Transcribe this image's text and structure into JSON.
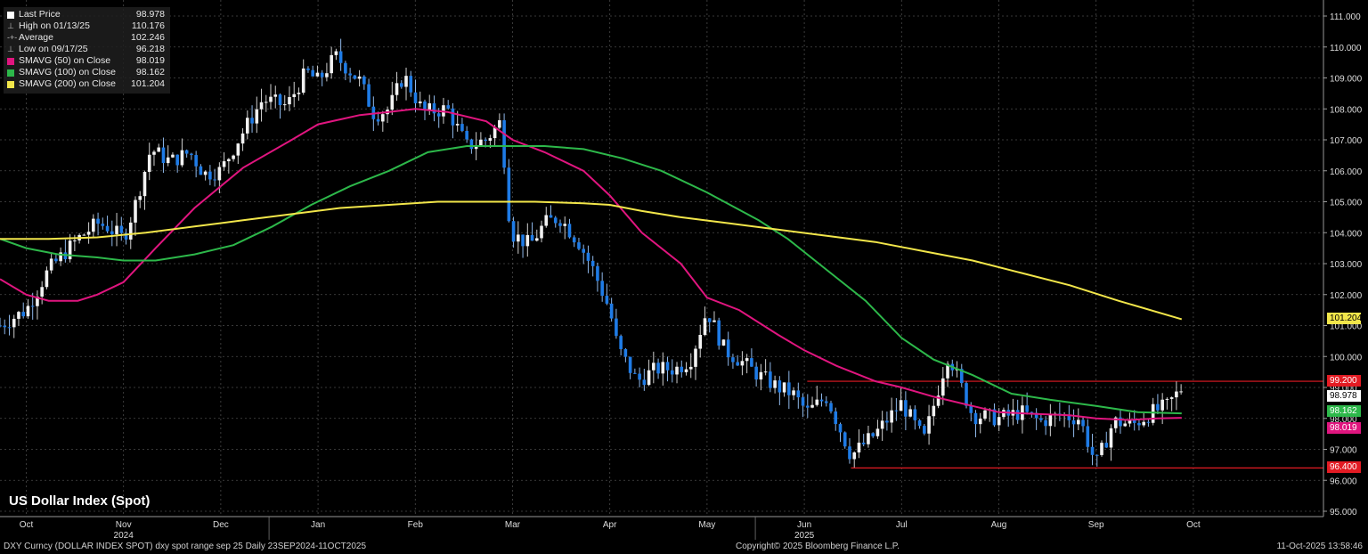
{
  "legend": [
    {
      "label": "Last Price",
      "value": "98.978",
      "color": "#ffffff",
      "kind": "box"
    },
    {
      "label": "High on 01/13/25",
      "value": "110.176",
      "kind": "tick"
    },
    {
      "label": "Average",
      "value": "102.246",
      "kind": "dash"
    },
    {
      "label": "Low on 09/17/25",
      "value": "96.218",
      "kind": "tick"
    },
    {
      "label": "SMAVG (50)  on Close",
      "value": "98.019",
      "color": "#e0157f",
      "kind": "box"
    },
    {
      "label": "SMAVG (100)  on Close",
      "value": "98.162",
      "color": "#2db84a",
      "kind": "box"
    },
    {
      "label": "SMAVG (200)  on Close",
      "value": "101.204",
      "color": "#f2e64a",
      "kind": "box"
    }
  ],
  "title": "US Dollar Index (Spot)",
  "footer": {
    "left": "DXY Curncy (DOLLAR INDEX SPOT) dxy spot range sep 25 Daily 23SEP2024-11OCT2025",
    "center": "Copyright© 2025 Bloomberg Finance L.P.",
    "right": "11-Oct-2025 13:58:46"
  },
  "tags": {
    "sma200": {
      "text": "101.204",
      "value": 101.204,
      "bg": "#f2e64a",
      "fg": "#000000"
    },
    "resistance": {
      "text": "99.200",
      "value": 99.2,
      "bg": "#e31b23",
      "fg": "#ffffff"
    },
    "last": {
      "text": "98.978",
      "value": 98.978,
      "bg": "#ffffff",
      "fg": "#000000"
    },
    "sma100": {
      "text": "98.162",
      "value": 98.162,
      "bg": "#2db84a",
      "fg": "#ffffff"
    },
    "sma50": {
      "text": "98.019",
      "value": 98.019,
      "bg": "#e0157f",
      "fg": "#ffffff"
    },
    "support": {
      "text": "96.400",
      "value": 96.4,
      "bg": "#e31b23",
      "fg": "#ffffff"
    }
  },
  "colors": {
    "up": "#f2f2f2",
    "down": "#1e7be6",
    "grid": "#4a4a4a",
    "hline": "#e31b23"
  },
  "chart_data": {
    "type": "line",
    "title": "US Dollar Index (Spot)",
    "ylim": [
      95.0,
      111.0
    ],
    "yticks": [
      "95.000",
      "96.000",
      "97.000",
      "98.000",
      "99.000",
      "100.000",
      "101.000",
      "102.000",
      "103.000",
      "104.000",
      "105.000",
      "106.000",
      "107.000",
      "108.000",
      "109.000",
      "110.000",
      "111.000"
    ],
    "x_ticks": [
      {
        "label": "Oct",
        "month": 0.27
      },
      {
        "label": "Nov",
        "month": 1.27
      },
      {
        "label": "Dec",
        "month": 2.27
      },
      {
        "label": "Jan",
        "month": 3.27
      },
      {
        "label": "Feb",
        "month": 4.27
      },
      {
        "label": "Mar",
        "month": 5.27
      },
      {
        "label": "Apr",
        "month": 6.27
      },
      {
        "label": "May",
        "month": 7.27
      },
      {
        "label": "Jun",
        "month": 8.27
      },
      {
        "label": "Jul",
        "month": 9.27
      },
      {
        "label": "Aug",
        "month": 10.27
      },
      {
        "label": "Sep",
        "month": 11.27
      },
      {
        "label": "Oct",
        "month": 12.27
      }
    ],
    "year_labels": [
      {
        "label": "2024",
        "month": 1.27
      },
      {
        "label": "2025",
        "month": 8.27
      }
    ],
    "price_path": [
      [
        0.0,
        101.0
      ],
      [
        0.27,
        101.5
      ],
      [
        0.5,
        102.8
      ],
      [
        0.8,
        103.8
      ],
      [
        1.0,
        104.3
      ],
      [
        1.1,
        104.2
      ],
      [
        1.27,
        103.8
      ],
      [
        1.4,
        105.0
      ],
      [
        1.55,
        106.7
      ],
      [
        1.75,
        106.3
      ],
      [
        1.95,
        106.6
      ],
      [
        2.1,
        105.9
      ],
      [
        2.27,
        106.0
      ],
      [
        2.45,
        107.0
      ],
      [
        2.7,
        108.3
      ],
      [
        2.95,
        108.1
      ],
      [
        3.15,
        109.2
      ],
      [
        3.27,
        108.9
      ],
      [
        3.45,
        109.7
      ],
      [
        3.7,
        108.9
      ],
      [
        3.85,
        107.8
      ],
      [
        4.0,
        108.0
      ],
      [
        4.15,
        109.1
      ],
      [
        4.35,
        107.9
      ],
      [
        4.6,
        108.0
      ],
      [
        4.8,
        106.8
      ],
      [
        5.0,
        107.0
      ],
      [
        5.15,
        107.6
      ],
      [
        5.25,
        104.0
      ],
      [
        5.45,
        103.6
      ],
      [
        5.6,
        104.3
      ],
      [
        5.75,
        104.5
      ],
      [
        5.95,
        103.7
      ],
      [
        6.1,
        102.8
      ],
      [
        6.27,
        101.5
      ],
      [
        6.35,
        100.3
      ],
      [
        6.55,
        99.2
      ],
      [
        6.75,
        99.6
      ],
      [
        6.95,
        99.6
      ],
      [
        7.1,
        99.9
      ],
      [
        7.27,
        101.5
      ],
      [
        7.45,
        100.2
      ],
      [
        7.6,
        99.9
      ],
      [
        7.8,
        99.4
      ],
      [
        8.0,
        99.0
      ],
      [
        8.15,
        98.8
      ],
      [
        8.3,
        98.2
      ],
      [
        8.5,
        98.7
      ],
      [
        8.75,
        96.8
      ],
      [
        9.0,
        97.5
      ],
      [
        9.27,
        98.5
      ],
      [
        9.5,
        97.3
      ],
      [
        9.75,
        100.1
      ],
      [
        10.0,
        98.1
      ],
      [
        10.27,
        98.0
      ],
      [
        10.5,
        98.2
      ],
      [
        10.7,
        97.9
      ],
      [
        10.9,
        98.1
      ],
      [
        11.1,
        98.0
      ],
      [
        11.27,
        96.5
      ],
      [
        11.45,
        97.9
      ],
      [
        11.65,
        97.8
      ],
      [
        11.85,
        98.2
      ],
      [
        12.0,
        98.4
      ],
      [
        12.15,
        98.978
      ]
    ],
    "series": [
      {
        "name": "SMAVG (50)  on Close",
        "color": "#e0157f",
        "points": [
          [
            0.0,
            102.5
          ],
          [
            0.27,
            102.0
          ],
          [
            0.5,
            101.8
          ],
          [
            0.8,
            101.8
          ],
          [
            1.0,
            102.0
          ],
          [
            1.27,
            102.4
          ],
          [
            1.6,
            103.5
          ],
          [
            2.0,
            104.8
          ],
          [
            2.5,
            106.1
          ],
          [
            3.0,
            107.0
          ],
          [
            3.27,
            107.5
          ],
          [
            3.7,
            107.8
          ],
          [
            4.0,
            107.9
          ],
          [
            4.27,
            108.0
          ],
          [
            4.6,
            107.9
          ],
          [
            5.0,
            107.6
          ],
          [
            5.27,
            107.0
          ],
          [
            5.6,
            106.6
          ],
          [
            6.0,
            106.0
          ],
          [
            6.27,
            105.2
          ],
          [
            6.6,
            104.0
          ],
          [
            7.0,
            103.0
          ],
          [
            7.27,
            101.9
          ],
          [
            7.6,
            101.5
          ],
          [
            8.0,
            100.7
          ],
          [
            8.27,
            100.2
          ],
          [
            8.6,
            99.7
          ],
          [
            9.0,
            99.2
          ],
          [
            9.27,
            99.0
          ],
          [
            9.6,
            98.7
          ],
          [
            10.0,
            98.4
          ],
          [
            10.27,
            98.2
          ],
          [
            10.6,
            98.15
          ],
          [
            11.0,
            98.1
          ],
          [
            11.27,
            98.0
          ],
          [
            11.6,
            97.95
          ],
          [
            11.9,
            98.0
          ],
          [
            12.15,
            98.019
          ]
        ]
      },
      {
        "name": "SMAVG (100)  on Close",
        "color": "#2db84a",
        "points": [
          [
            0.0,
            103.8
          ],
          [
            0.27,
            103.5
          ],
          [
            0.6,
            103.3
          ],
          [
            1.0,
            103.2
          ],
          [
            1.27,
            103.1
          ],
          [
            1.6,
            103.1
          ],
          [
            2.0,
            103.3
          ],
          [
            2.4,
            103.6
          ],
          [
            2.8,
            104.2
          ],
          [
            3.2,
            104.9
          ],
          [
            3.6,
            105.5
          ],
          [
            4.0,
            106.0
          ],
          [
            4.4,
            106.6
          ],
          [
            4.8,
            106.8
          ],
          [
            5.27,
            106.8
          ],
          [
            5.6,
            106.8
          ],
          [
            6.0,
            106.7
          ],
          [
            6.4,
            106.4
          ],
          [
            6.8,
            106.0
          ],
          [
            7.27,
            105.3
          ],
          [
            7.8,
            104.4
          ],
          [
            8.1,
            103.8
          ],
          [
            8.5,
            102.8
          ],
          [
            8.9,
            101.8
          ],
          [
            9.27,
            100.6
          ],
          [
            9.6,
            99.9
          ],
          [
            10.0,
            99.4
          ],
          [
            10.4,
            98.8
          ],
          [
            10.8,
            98.6
          ],
          [
            11.27,
            98.4
          ],
          [
            11.7,
            98.2
          ],
          [
            12.15,
            98.162
          ]
        ]
      },
      {
        "name": "SMAVG (200)  on Close",
        "color": "#f2e64a",
        "points": [
          [
            0.0,
            103.8
          ],
          [
            0.5,
            103.8
          ],
          [
            1.0,
            103.85
          ],
          [
            1.5,
            104.0
          ],
          [
            2.0,
            104.2
          ],
          [
            2.5,
            104.4
          ],
          [
            3.0,
            104.6
          ],
          [
            3.5,
            104.8
          ],
          [
            4.0,
            104.9
          ],
          [
            4.5,
            105.0
          ],
          [
            5.0,
            105.0
          ],
          [
            5.5,
            105.0
          ],
          [
            6.0,
            104.95
          ],
          [
            6.27,
            104.9
          ],
          [
            6.6,
            104.7
          ],
          [
            7.0,
            104.5
          ],
          [
            7.5,
            104.3
          ],
          [
            8.0,
            104.1
          ],
          [
            8.5,
            103.9
          ],
          [
            9.0,
            103.7
          ],
          [
            9.5,
            103.4
          ],
          [
            10.0,
            103.1
          ],
          [
            10.5,
            102.7
          ],
          [
            11.0,
            102.3
          ],
          [
            11.5,
            101.8
          ],
          [
            12.15,
            101.204
          ]
        ]
      }
    ],
    "hlines": [
      {
        "value": 99.2,
        "from": 8.3,
        "to": 12.15
      },
      {
        "value": 96.4,
        "from": 8.75,
        "to": 12.15
      }
    ]
  }
}
